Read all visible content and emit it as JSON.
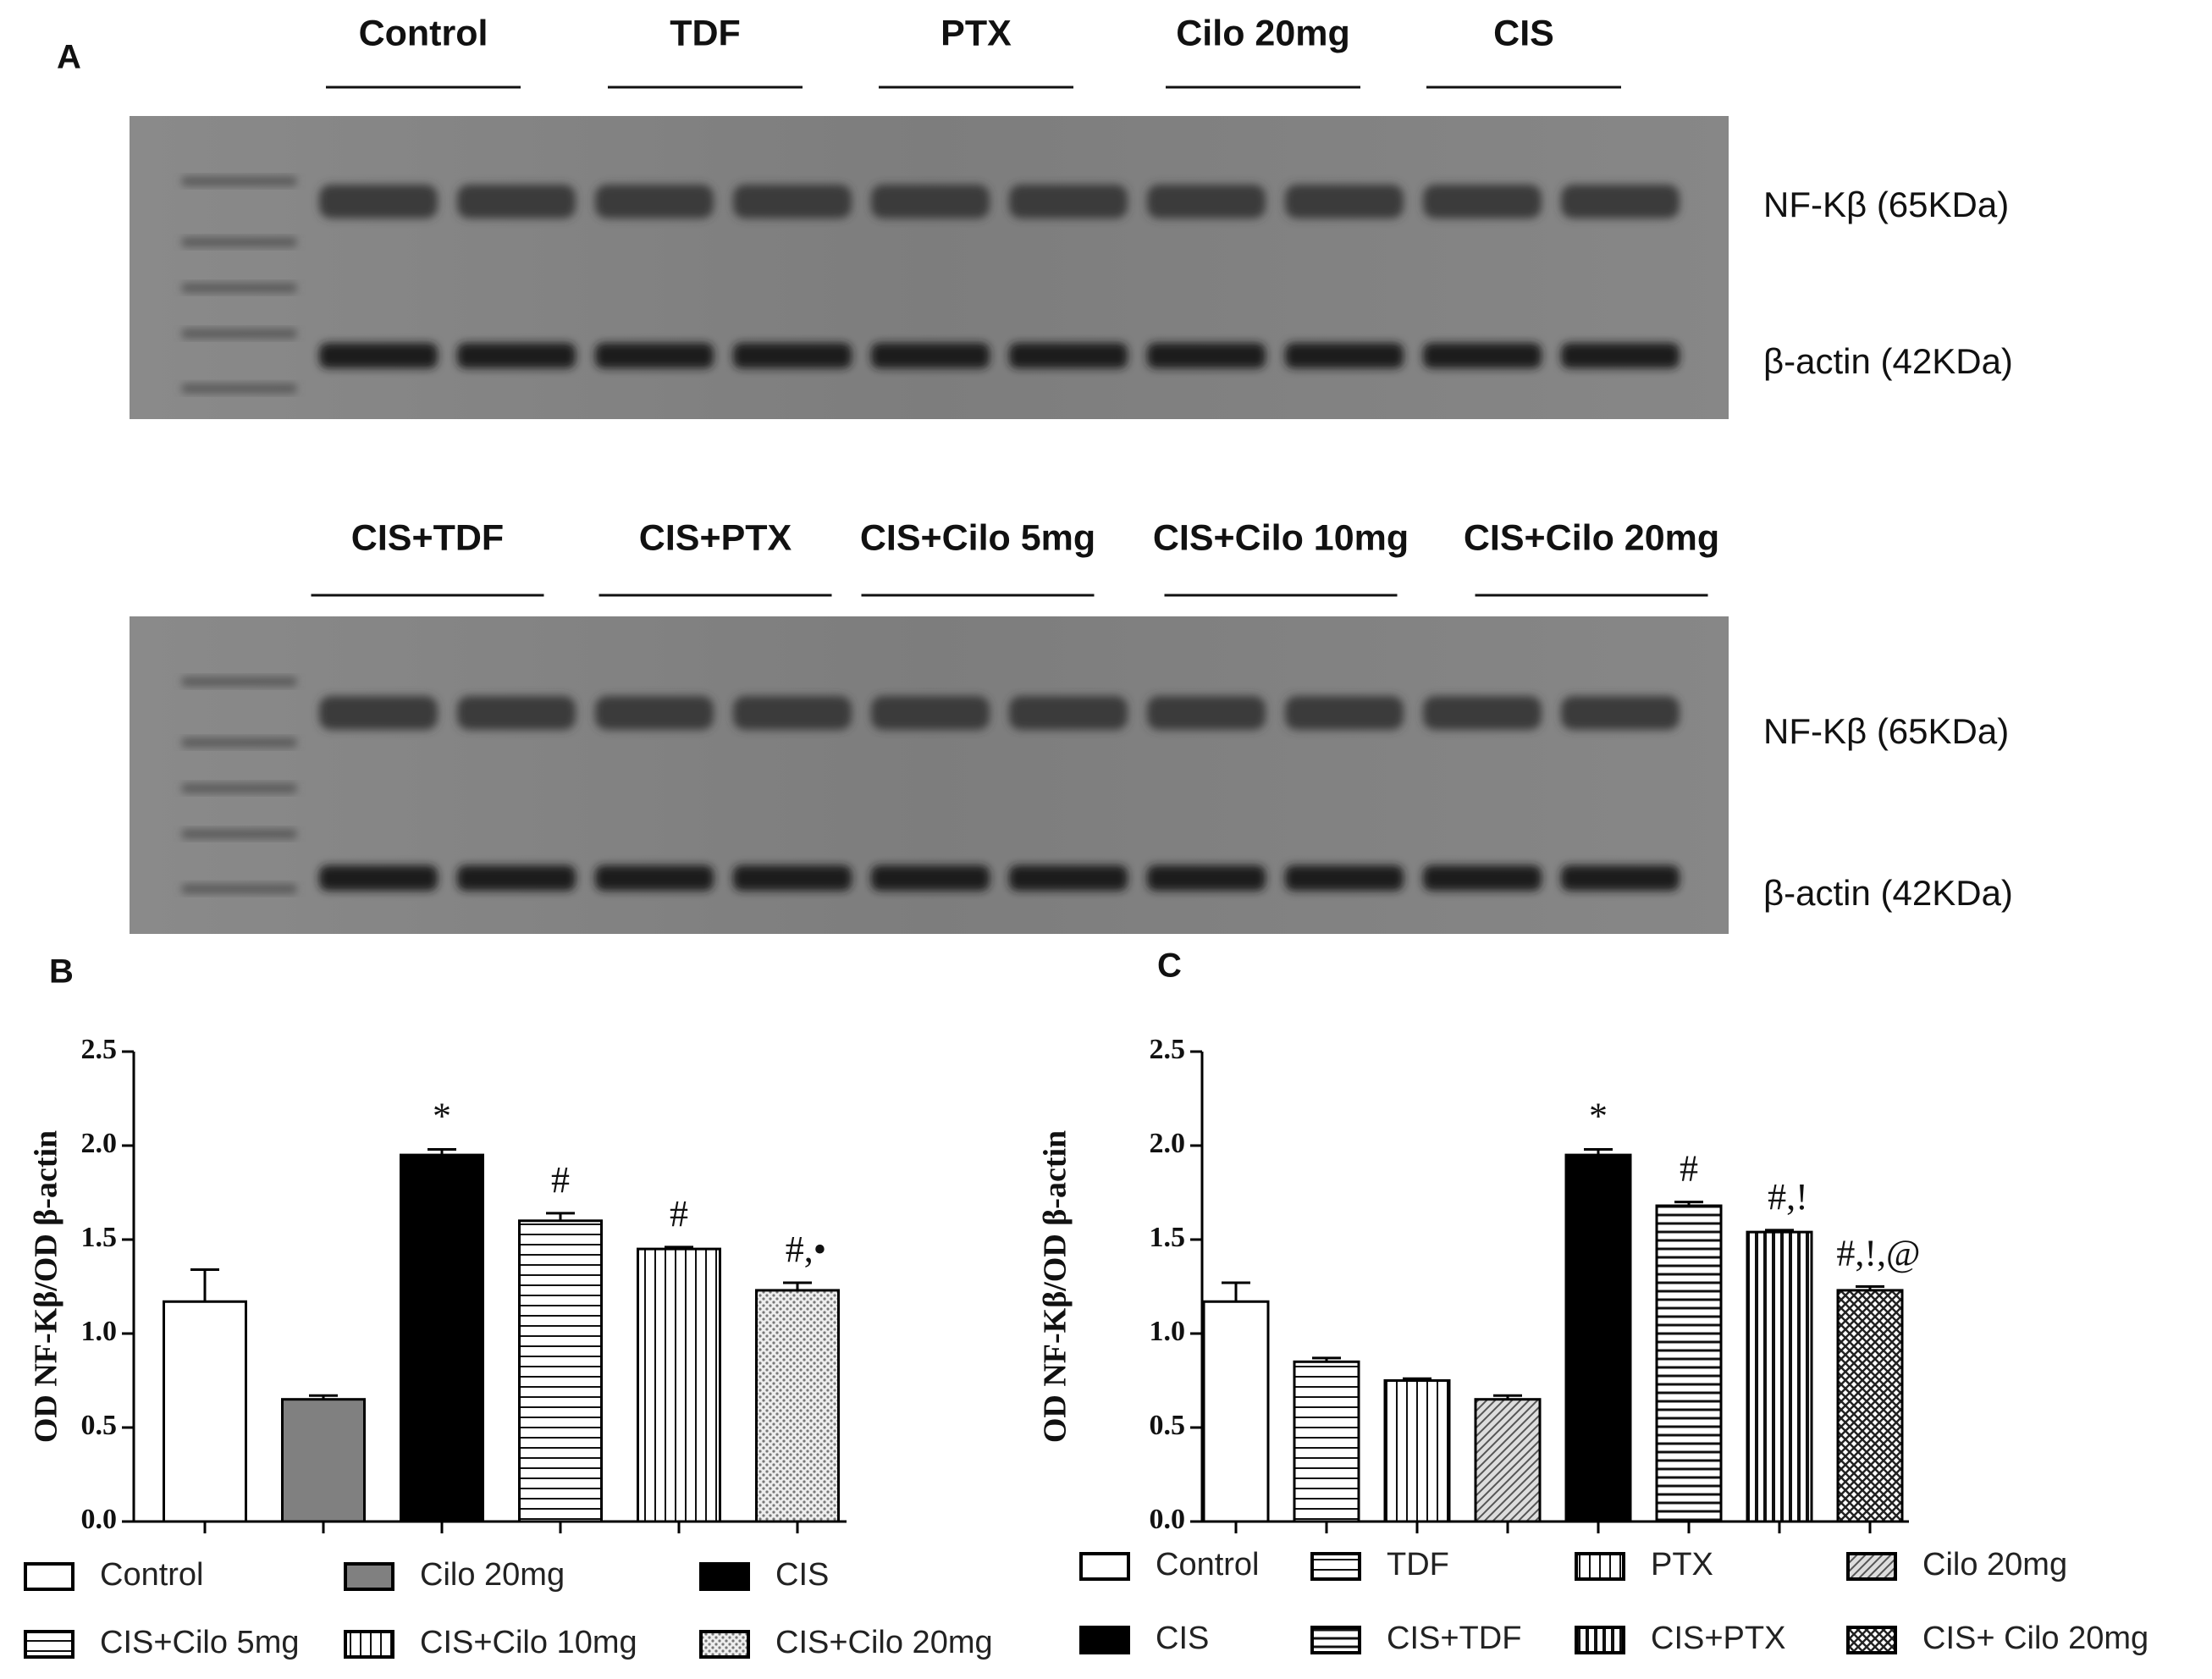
{
  "panels": [
    "A",
    "B",
    "C"
  ],
  "blots": [
    {
      "lanes": [
        "Control",
        "TDF",
        "PTX",
        "Cilo 20mg",
        "CIS"
      ],
      "bands": [
        "NF-Kβ (65KDa)",
        "β-actin (42KDa)"
      ]
    },
    {
      "lanes": [
        "CIS+TDF",
        "CIS+PTX",
        "CIS+Cilo 5mg",
        "CIS+Cilo 10mg",
        "CIS+Cilo 20mg"
      ],
      "bands": [
        "NF-Kβ (65KDa)",
        "β-actin (42KDa)"
      ]
    }
  ],
  "chart_data": [
    {
      "type": "bar",
      "y_label": "OD NF-Kβ/OD β-actin",
      "ylim": [
        0,
        2.5
      ],
      "yticks": [
        {
          "value": 0,
          "label": "0.0"
        },
        {
          "value": 0.5,
          "label": "0.5"
        },
        {
          "value": 1,
          "label": "1.0"
        },
        {
          "value": 1.5,
          "label": "1.5"
        },
        {
          "value": 2,
          "label": "2.0"
        },
        {
          "value": 2.5,
          "label": "2.5"
        }
      ],
      "series": [
        {
          "name": "Control",
          "color": "#ffffff",
          "pattern": "solid",
          "values": [
            1.17
          ],
          "errors": [
            0.17
          ]
        },
        {
          "name": "Cilo 20mg",
          "color": "#808080",
          "pattern": "solid",
          "values": [
            0.65
          ],
          "errors": [
            0.02
          ]
        },
        {
          "name": "CIS",
          "color": "#000000",
          "pattern": "solid",
          "values": [
            1.95
          ],
          "errors": [
            0.03
          ],
          "annotation": "*"
        },
        {
          "name": "CIS+Cilo 5mg",
          "color": "#ffffff",
          "pattern": "hlines",
          "values": [
            1.6
          ],
          "errors": [
            0.04
          ],
          "annotation": "#"
        },
        {
          "name": "CIS+Cilo 10mg",
          "color": "#ffffff",
          "pattern": "vlines",
          "values": [
            1.45
          ],
          "errors": [
            0.01
          ],
          "annotation": "#"
        },
        {
          "name": "CIS+Cilo 20mg",
          "color": "#ffffff",
          "pattern": "dots",
          "values": [
            1.23
          ],
          "errors": [
            0.04
          ],
          "annotation": "#,•"
        }
      ]
    },
    {
      "type": "bar",
      "y_label": "OD NF-Kβ/OD β-actin",
      "ylim": [
        0,
        2.5
      ],
      "yticks": [
        {
          "value": 0,
          "label": "0.0"
        },
        {
          "value": 0.5,
          "label": "0.5"
        },
        {
          "value": 1,
          "label": "1.0"
        },
        {
          "value": 1.5,
          "label": "1.5"
        },
        {
          "value": 2,
          "label": "2.0"
        },
        {
          "value": 2.5,
          "label": "2.5"
        }
      ],
      "series": [
        {
          "name": "Control",
          "color": "#ffffff",
          "pattern": "solid",
          "values": [
            1.17
          ],
          "errors": [
            0.1
          ]
        },
        {
          "name": "TDF",
          "color": "#ffffff",
          "pattern": "hlines",
          "values": [
            0.85
          ],
          "errors": [
            0.02
          ]
        },
        {
          "name": "PTX",
          "color": "#ffffff",
          "pattern": "vlines",
          "values": [
            0.75
          ],
          "errors": [
            0.01
          ]
        },
        {
          "name": "Cilo 20mg",
          "color": "#ffffff",
          "pattern": "diag",
          "values": [
            0.65
          ],
          "errors": [
            0.02
          ]
        },
        {
          "name": "CIS",
          "color": "#000000",
          "pattern": "solid",
          "values": [
            1.95
          ],
          "errors": [
            0.03
          ],
          "annotation": "*"
        },
        {
          "name": "CIS+TDF",
          "color": "#ffffff",
          "pattern": "hbars",
          "values": [
            1.68
          ],
          "errors": [
            0.02
          ],
          "annotation": "#"
        },
        {
          "name": "CIS+PTX",
          "color": "#ffffff",
          "pattern": "vbars",
          "values": [
            1.54
          ],
          "errors": [
            0.01
          ],
          "annotation": "#,!"
        },
        {
          "name": "CIS+ Cilo 20mg",
          "color": "#ffffff",
          "pattern": "crosshatch",
          "values": [
            1.23
          ],
          "errors": [
            0.02
          ],
          "annotation": "#,!,@"
        }
      ]
    }
  ]
}
